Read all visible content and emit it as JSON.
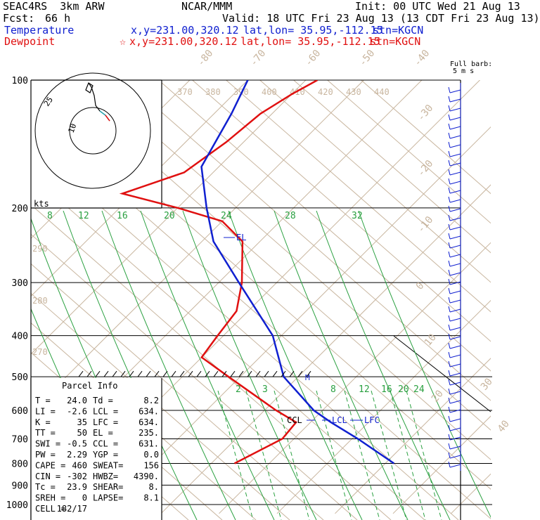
{
  "header": {
    "model": "SEAC4RS  3km ARW",
    "center": "NCAR/MMM",
    "init": "Init: 00 UTC Wed 21 Aug 13",
    "fcst_label": "Fcst:",
    "fcst_value": "66 h",
    "valid": "Valid: 18 UTC Fri 23 Aug 13 (13 CDT Fri 23 Aug 13)",
    "temp_row": {
      "label": "Temperature",
      "xy": "x,y=231.00,320.12",
      "latlon": "lat,lon= 35.95,-112.15",
      "stn": "stn=KGCN"
    },
    "dew_row": {
      "label": "Dewpoint",
      "xy": "x,y=231.00,320.12",
      "latlon": "lat,lon= 35.95,-112.15",
      "stn": "stn=KGCN"
    }
  },
  "wind_key": {
    "line1": "Full barb:",
    "line2": "5 m s"
  },
  "hodograph": {
    "units": "kts",
    "ring_labels": [
      "10",
      "25"
    ]
  },
  "parcel_info": {
    "title": "Parcel Info",
    "rows": [
      [
        "T  =",
        "24.0",
        "Td =",
        "8.2"
      ],
      [
        "LI =",
        "-2.6",
        "LCL =",
        "634."
      ],
      [
        "K  =",
        "35",
        "LFC =",
        "634."
      ],
      [
        "TT =",
        "50",
        "EL =",
        "235."
      ],
      [
        "SWI =",
        "-0.5",
        "CCL =",
        "631."
      ],
      [
        "PW =",
        "2.29",
        "YGP =",
        "0.0"
      ],
      [
        "CAPE =",
        "460",
        "SWEAT=",
        "156"
      ],
      [
        "CIN =",
        "-302",
        "HWBZ=",
        "4390."
      ],
      [
        "Tc =",
        "23.9",
        "SHEAR=",
        "8."
      ],
      [
        "SREH =",
        "0",
        "LAPSE=",
        "8.1"
      ],
      [
        "CELL =",
        "182/17",
        "",
        ""
      ]
    ]
  },
  "chart_data": {
    "type": "line",
    "subtype": "skew-T log-p sounding",
    "y_axis": {
      "quantity": "pressure (hPa)",
      "scale": "log",
      "range": [
        1000,
        100
      ],
      "ticks": [
        100,
        200,
        300,
        400,
        500,
        600,
        700,
        800,
        900,
        1000
      ]
    },
    "isotherm_labels": [
      "-80",
      "-70",
      "-60",
      "-50",
      "-40",
      "-30",
      "-20",
      "-10",
      "0",
      "10",
      "20",
      "30",
      "40"
    ],
    "theta_labels": [
      "370",
      "380",
      "390",
      "400",
      "410",
      "420",
      "430",
      "440"
    ],
    "theta_low_labels": [
      "290",
      "280",
      "270"
    ],
    "mixing_ratio_labels_top": [
      "8",
      "12",
      "16",
      "20",
      "24",
      "28",
      "32"
    ],
    "mixing_ratio_labels_bottom": [
      "2",
      "3",
      "8",
      "12",
      "16",
      "20",
      "24"
    ],
    "series": [
      {
        "name": "Temperature",
        "color": "#1020d0",
        "points": [
          [
            800,
            31.5
          ],
          [
            700,
            21
          ],
          [
            640,
            13.5
          ],
          [
            600,
            8.5
          ],
          [
            500,
            -2.5
          ],
          [
            400,
            -11.5
          ],
          [
            300,
            -26.5
          ],
          [
            240,
            -38
          ],
          [
            200,
            -45
          ],
          [
            160,
            -53
          ],
          [
            120,
            -57
          ],
          [
            100,
            -60
          ]
        ]
      },
      {
        "name": "Dewpoint",
        "color": "#e01010",
        "points": [
          [
            800,
            4
          ],
          [
            700,
            8
          ],
          [
            640,
            7.5
          ],
          [
            600,
            2
          ],
          [
            500,
            -12
          ],
          [
            450,
            -20
          ],
          [
            400,
            -21
          ],
          [
            350,
            -22
          ],
          [
            300,
            -26
          ],
          [
            240,
            -33
          ],
          [
            215,
            -40
          ],
          [
            200,
            -50
          ],
          [
            185,
            -62
          ],
          [
            165,
            -55
          ],
          [
            140,
            -53
          ],
          [
            120,
            -52
          ],
          [
            108,
            -50
          ],
          [
            100,
            -48
          ]
        ]
      }
    ],
    "annotations": [
      "EL",
      "CCL",
      "LCL",
      "LFC",
      "M"
    ]
  }
}
